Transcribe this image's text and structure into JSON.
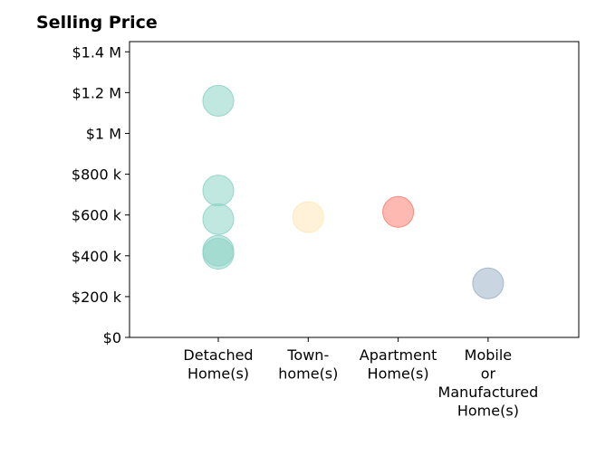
{
  "chart_data": {
    "type": "scatter",
    "title": "Selling Price",
    "xlabel": "",
    "ylabel": "",
    "categories": [
      [
        "Detached",
        "Home(s)"
      ],
      [
        "Town-",
        "home(s)"
      ],
      [
        "Apartment",
        "Home(s)"
      ],
      [
        "Mobile",
        "or",
        "Manufactured",
        "Home(s)"
      ]
    ],
    "ylim": [
      0,
      1450000
    ],
    "yticks": [
      0,
      200000,
      400000,
      600000,
      800000,
      1000000,
      1200000,
      1400000
    ],
    "ytick_labels": [
      "$0",
      "$200 k",
      "$400 k",
      "$600 k",
      "$800 k",
      "$1 M",
      "$1.2 M",
      "$1.4 M"
    ],
    "grid": false,
    "points": [
      {
        "category": 0,
        "y": 1160000,
        "color": "#8dd3c7"
      },
      {
        "category": 0,
        "y": 720000,
        "color": "#8dd3c7"
      },
      {
        "category": 0,
        "y": 580000,
        "color": "#8dd3c7"
      },
      {
        "category": 0,
        "y": 425000,
        "color": "#8dd3c7"
      },
      {
        "category": 0,
        "y": 410000,
        "color": "#8dd3c7"
      },
      {
        "category": 1,
        "y": 590000,
        "color": "#ffe8b8"
      },
      {
        "category": 2,
        "y": 615000,
        "color": "#fb8072"
      },
      {
        "category": 3,
        "y": 265000,
        "color": "#9db4c8"
      }
    ]
  }
}
